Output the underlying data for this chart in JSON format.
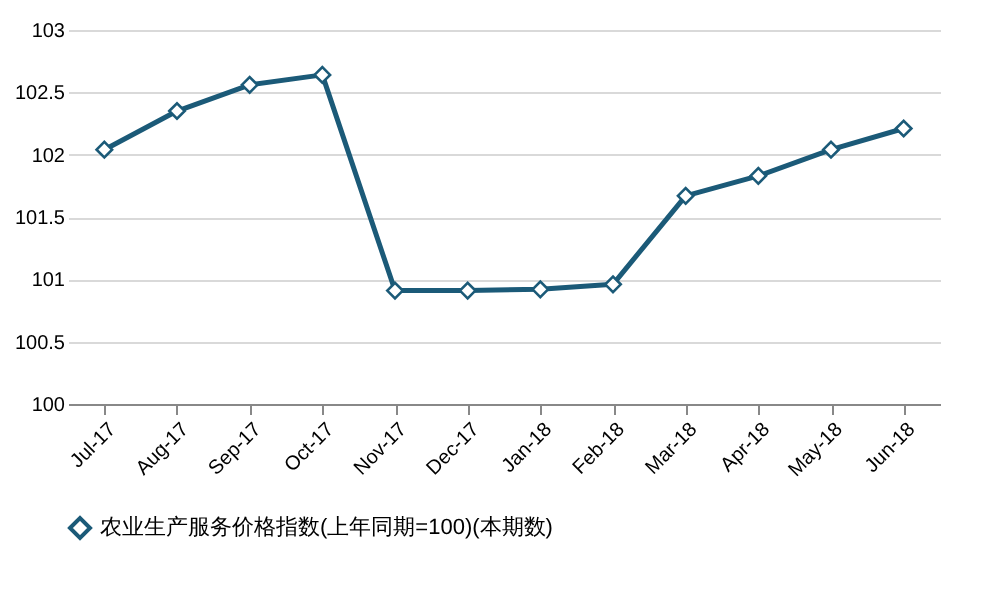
{
  "chart_data": {
    "type": "line",
    "categories": [
      "Jul-17",
      "Aug-17",
      "Sep-17",
      "Oct-17",
      "Nov-17",
      "Dec-17",
      "Jan-18",
      "Feb-18",
      "Mar-18",
      "Apr-18",
      "May-18",
      "Jun-18"
    ],
    "series": [
      {
        "name": "农业生产服务价格指数(上年同期=100)(本期数)",
        "color": "#1b5a78",
        "values": [
          102.04,
          102.35,
          102.56,
          102.64,
          100.91,
          100.91,
          100.92,
          100.96,
          101.67,
          101.83,
          102.04,
          102.21
        ]
      }
    ],
    "ylim": [
      100,
      103
    ],
    "yticks": [
      100,
      100.5,
      101,
      101.5,
      102,
      102.5,
      103
    ],
    "grid": "y",
    "legend": "bottom",
    "marker": "diamond",
    "line_style": "solid"
  }
}
